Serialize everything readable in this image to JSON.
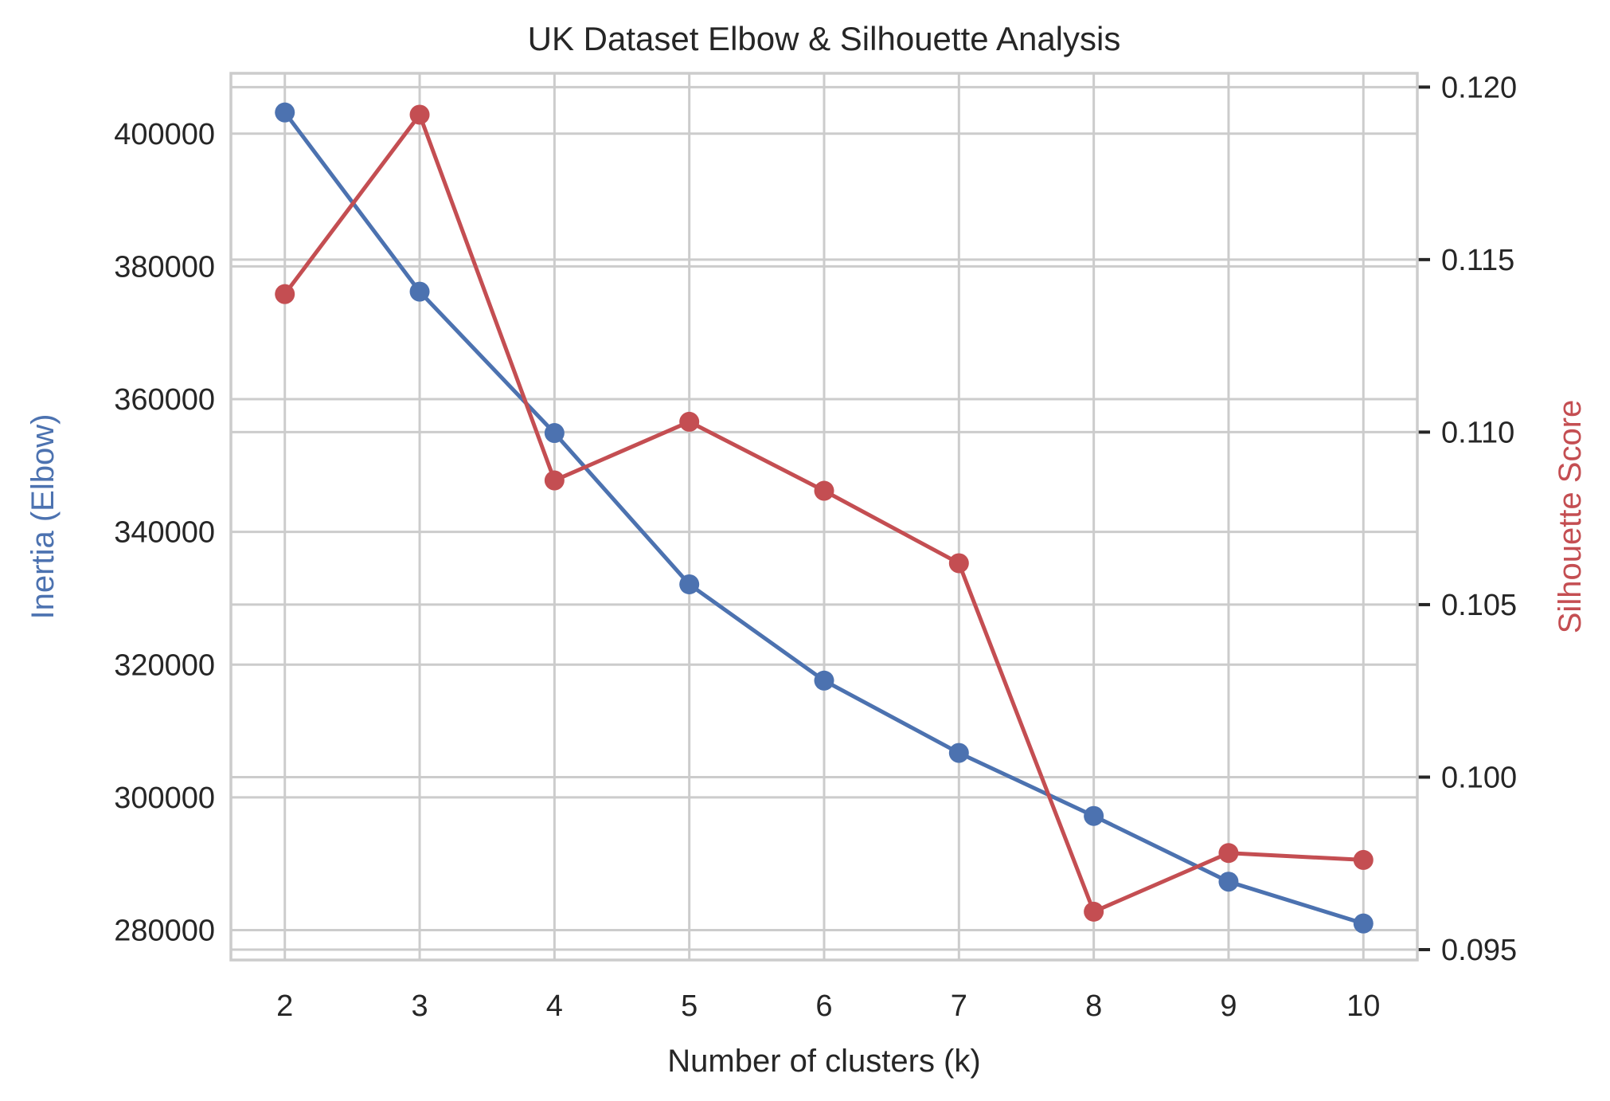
{
  "chart_data": {
    "type": "line",
    "title": "UK Dataset Elbow & Silhouette Analysis",
    "xlabel": "Number of clusters (k)",
    "ylabel_left": "Inertia (Elbow)",
    "ylabel_right": "Silhouette Score",
    "x": [
      2,
      3,
      4,
      5,
      6,
      7,
      8,
      9,
      10
    ],
    "x_ticks": [
      "2",
      "3",
      "4",
      "5",
      "6",
      "7",
      "8",
      "9",
      "10"
    ],
    "xlim": [
      1.6,
      10.4
    ],
    "y_left_ticks": [
      "280000",
      "300000",
      "320000",
      "340000",
      "360000",
      "380000",
      "400000"
    ],
    "y_left_lim": [
      275500,
      409100
    ],
    "y_right_ticks": [
      "0.095",
      "0.100",
      "0.105",
      "0.110",
      "0.115",
      "0.120"
    ],
    "y_right_lim": [
      0.0947,
      0.1204
    ],
    "grid": true,
    "series": [
      {
        "axis": "left",
        "color": "#4c72b0",
        "values": [
          403200,
          376200,
          354900,
          332100,
          317600,
          306700,
          297200,
          287300,
          281000
        ]
      },
      {
        "axis": "right",
        "color": "#c44e52",
        "values": [
          0.114,
          0.1192,
          0.1086,
          0.1103,
          0.1083,
          0.1062,
          0.0961,
          0.0978,
          0.0976
        ]
      }
    ],
    "left_label_color": "#4c72b0",
    "right_label_color": "#c44e52"
  }
}
